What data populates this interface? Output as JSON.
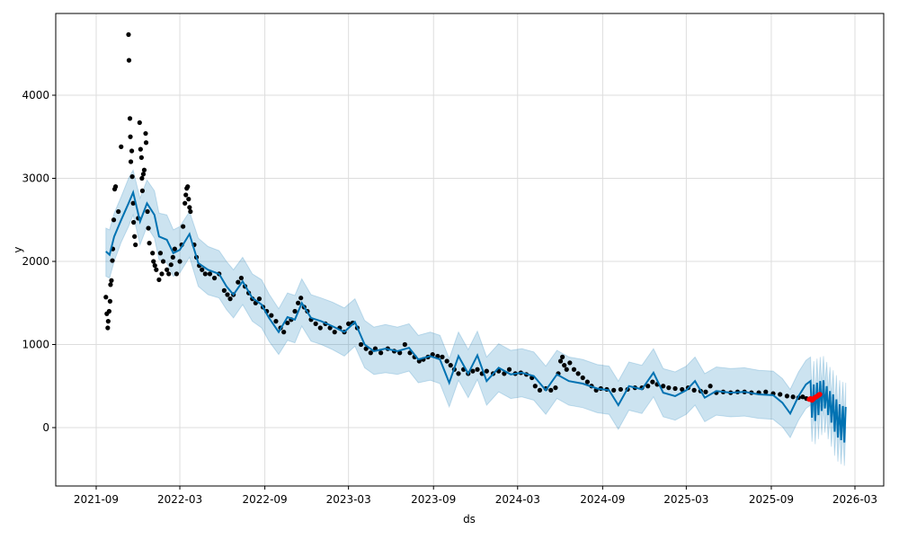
{
  "chart_data": {
    "type": "line",
    "title": "",
    "xlabel": "ds",
    "ylabel": "y",
    "xlim": [
      "2021-08-01",
      "2026-04-01"
    ],
    "ylim": [
      -700,
      4950
    ],
    "grid": true,
    "x_ticks": [
      "2021-09",
      "2022-03",
      "2022-09",
      "2023-03",
      "2023-09",
      "2024-03",
      "2024-09",
      "2025-03",
      "2025-09",
      "2026-03"
    ],
    "y_ticks": [
      0,
      1000,
      2000,
      3000,
      4000
    ],
    "colors": {
      "forecast": "#0072B2",
      "interval": "#0072B2",
      "observed": "#000000",
      "test": "#ff0000",
      "grid": "#dddddd"
    },
    "forecast": [
      [
        "2021-09-22",
        2120,
        1820,
        2400
      ],
      [
        "2021-09-30",
        2080,
        1800,
        2380
      ],
      [
        "2021-10-10",
        2300,
        2000,
        2580
      ],
      [
        "2021-10-25",
        2500,
        2230,
        2780
      ],
      [
        "2021-11-10",
        2700,
        2420,
        3000
      ],
      [
        "2021-11-20",
        2830,
        2560,
        3100
      ],
      [
        "2021-12-05",
        2480,
        2200,
        2760
      ],
      [
        "2021-12-20",
        2700,
        2420,
        2980
      ],
      [
        "2022-01-05",
        2560,
        2280,
        2850
      ],
      [
        "2022-01-15",
        2300,
        2020,
        2580
      ],
      [
        "2022-02-01",
        2260,
        1980,
        2560
      ],
      [
        "2022-02-15",
        2100,
        1820,
        2380
      ],
      [
        "2022-03-01",
        2140,
        1860,
        2420
      ],
      [
        "2022-03-22",
        2330,
        2050,
        2600
      ],
      [
        "2022-04-10",
        1980,
        1700,
        2280
      ],
      [
        "2022-05-01",
        1900,
        1600,
        2180
      ],
      [
        "2022-05-25",
        1850,
        1560,
        2130
      ],
      [
        "2022-06-10",
        1700,
        1420,
        2000
      ],
      [
        "2022-06-25",
        1600,
        1320,
        1900
      ],
      [
        "2022-07-15",
        1760,
        1480,
        2050
      ],
      [
        "2022-08-05",
        1560,
        1280,
        1850
      ],
      [
        "2022-08-25",
        1480,
        1200,
        1780
      ],
      [
        "2022-09-10",
        1320,
        1040,
        1610
      ],
      [
        "2022-10-01",
        1150,
        880,
        1430
      ],
      [
        "2022-10-20",
        1330,
        1050,
        1620
      ],
      [
        "2022-11-05",
        1300,
        1020,
        1590
      ],
      [
        "2022-11-20",
        1500,
        1220,
        1790
      ],
      [
        "2022-12-10",
        1320,
        1040,
        1600
      ],
      [
        "2023-01-01",
        1280,
        1000,
        1560
      ],
      [
        "2023-01-25",
        1220,
        940,
        1510
      ],
      [
        "2023-02-20",
        1150,
        860,
        1440
      ],
      [
        "2023-03-15",
        1270,
        980,
        1550
      ],
      [
        "2023-04-05",
        1000,
        720,
        1290
      ],
      [
        "2023-04-25",
        920,
        640,
        1210
      ],
      [
        "2023-05-20",
        950,
        660,
        1240
      ],
      [
        "2023-06-15",
        920,
        640,
        1210
      ],
      [
        "2023-07-10",
        960,
        680,
        1250
      ],
      [
        "2023-07-30",
        820,
        540,
        1110
      ],
      [
        "2023-08-25",
        860,
        570,
        1150
      ],
      [
        "2023-09-15",
        820,
        530,
        1110
      ],
      [
        "2023-10-05",
        540,
        250,
        830
      ],
      [
        "2023-10-25",
        860,
        570,
        1150
      ],
      [
        "2023-11-15",
        650,
        360,
        940
      ],
      [
        "2023-12-05",
        870,
        580,
        1160
      ],
      [
        "2023-12-25",
        560,
        270,
        850
      ],
      [
        "2024-01-20",
        720,
        430,
        1010
      ],
      [
        "2024-02-15",
        640,
        350,
        930
      ],
      [
        "2024-03-10",
        660,
        370,
        950
      ],
      [
        "2024-04-05",
        620,
        330,
        910
      ],
      [
        "2024-05-01",
        450,
        160,
        740
      ],
      [
        "2024-05-25",
        640,
        350,
        930
      ],
      [
        "2024-06-20",
        560,
        270,
        850
      ],
      [
        "2024-07-20",
        530,
        240,
        820
      ],
      [
        "2024-08-20",
        470,
        180,
        760
      ],
      [
        "2024-09-15",
        450,
        160,
        740
      ],
      [
        "2024-10-05",
        270,
        -20,
        560
      ],
      [
        "2024-10-28",
        500,
        210,
        790
      ],
      [
        "2024-11-25",
        460,
        170,
        750
      ],
      [
        "2024-12-20",
        660,
        370,
        950
      ],
      [
        "2025-01-10",
        420,
        130,
        710
      ],
      [
        "2025-02-05",
        380,
        90,
        670
      ],
      [
        "2025-03-01",
        450,
        160,
        740
      ],
      [
        "2025-03-20",
        560,
        270,
        850
      ],
      [
        "2025-04-10",
        360,
        70,
        650
      ],
      [
        "2025-05-05",
        440,
        150,
        730
      ],
      [
        "2025-06-05",
        420,
        130,
        710
      ],
      [
        "2025-07-05",
        430,
        140,
        720
      ],
      [
        "2025-08-05",
        400,
        110,
        690
      ],
      [
        "2025-09-05",
        390,
        100,
        680
      ],
      [
        "2025-09-25",
        300,
        10,
        590
      ],
      [
        "2025-10-12",
        170,
        -120,
        460
      ],
      [
        "2025-10-30",
        380,
        90,
        670
      ],
      [
        "2025-11-15",
        520,
        230,
        810
      ],
      [
        "2025-11-25",
        560,
        270,
        850
      ],
      [
        "2025-11-28",
        120,
        -170,
        410
      ],
      [
        "2025-12-02",
        520,
        230,
        800
      ],
      [
        "2025-12-05",
        80,
        -200,
        370
      ],
      [
        "2025-12-09",
        540,
        250,
        830
      ],
      [
        "2025-12-12",
        150,
        -140,
        440
      ],
      [
        "2025-12-16",
        560,
        270,
        850
      ],
      [
        "2025-12-19",
        200,
        -90,
        490
      ],
      [
        "2025-12-23",
        570,
        280,
        860
      ],
      [
        "2025-12-26",
        230,
        -60,
        520
      ],
      [
        "2025-12-30",
        500,
        210,
        790
      ],
      [
        "2026-01-02",
        150,
        -140,
        440
      ],
      [
        "2026-01-06",
        440,
        150,
        730
      ],
      [
        "2026-01-09",
        60,
        -230,
        350
      ],
      [
        "2026-01-13",
        400,
        110,
        690
      ],
      [
        "2026-01-16",
        -50,
        -340,
        240
      ],
      [
        "2026-01-20",
        340,
        50,
        630
      ],
      [
        "2026-01-23",
        -120,
        -410,
        170
      ],
      [
        "2026-01-27",
        280,
        -10,
        570
      ],
      [
        "2026-01-30",
        -150,
        -440,
        140
      ],
      [
        "2026-02-03",
        260,
        -30,
        550
      ],
      [
        "2026-02-06",
        -180,
        -460,
        100
      ],
      [
        "2026-02-09",
        250,
        -40,
        540
      ]
    ],
    "observed": [
      [
        "2021-09-22",
        1570
      ],
      [
        "2021-09-24",
        1370
      ],
      [
        "2021-09-26",
        1200
      ],
      [
        "2021-09-27",
        1280
      ],
      [
        "2021-09-29",
        1400
      ],
      [
        "2021-10-01",
        1520
      ],
      [
        "2021-10-02",
        1720
      ],
      [
        "2021-10-04",
        1770
      ],
      [
        "2021-10-06",
        2010
      ],
      [
        "2021-10-07",
        2150
      ],
      [
        "2021-10-09",
        2500
      ],
      [
        "2021-10-11",
        2870
      ],
      [
        "2021-10-13",
        2900
      ],
      [
        "2021-10-19",
        2600
      ],
      [
        "2021-10-25",
        3380
      ],
      [
        "2021-11-10",
        4730
      ],
      [
        "2021-11-11",
        4420
      ],
      [
        "2021-11-13",
        3720
      ],
      [
        "2021-11-14",
        3500
      ],
      [
        "2021-11-15",
        3200
      ],
      [
        "2021-11-17",
        3330
      ],
      [
        "2021-11-18",
        3020
      ],
      [
        "2021-11-20",
        2700
      ],
      [
        "2021-11-21",
        2470
      ],
      [
        "2021-11-23",
        2300
      ],
      [
        "2021-11-25",
        2200
      ],
      [
        "2021-12-01",
        2520
      ],
      [
        "2021-12-04",
        3670
      ],
      [
        "2021-12-06",
        3350
      ],
      [
        "2021-12-08",
        3250
      ],
      [
        "2021-12-09",
        3000
      ],
      [
        "2021-12-10",
        2850
      ],
      [
        "2021-12-12",
        3050
      ],
      [
        "2021-12-14",
        3100
      ],
      [
        "2021-12-17",
        3540
      ],
      [
        "2021-12-18",
        3430
      ],
      [
        "2021-12-21",
        2600
      ],
      [
        "2021-12-23",
        2400
      ],
      [
        "2021-12-25",
        2220
      ],
      [
        "2022-01-01",
        2100
      ],
      [
        "2022-01-03",
        2000
      ],
      [
        "2022-01-06",
        1950
      ],
      [
        "2022-01-09",
        1900
      ],
      [
        "2022-01-15",
        1780
      ],
      [
        "2022-01-18",
        2100
      ],
      [
        "2022-01-21",
        1850
      ],
      [
        "2022-01-24",
        2000
      ],
      [
        "2022-02-01",
        1900
      ],
      [
        "2022-02-05",
        1850
      ],
      [
        "2022-02-10",
        1960
      ],
      [
        "2022-02-14",
        2050
      ],
      [
        "2022-02-18",
        2150
      ],
      [
        "2022-02-22",
        1850
      ],
      [
        "2022-03-01",
        2000
      ],
      [
        "2022-03-05",
        2200
      ],
      [
        "2022-03-08",
        2420
      ],
      [
        "2022-03-12",
        2700
      ],
      [
        "2022-03-14",
        2800
      ],
      [
        "2022-03-16",
        2880
      ],
      [
        "2022-03-18",
        2900
      ],
      [
        "2022-03-20",
        2750
      ],
      [
        "2022-03-22",
        2650
      ],
      [
        "2022-03-24",
        2600
      ],
      [
        "2022-04-01",
        2200
      ],
      [
        "2022-04-06",
        2050
      ],
      [
        "2022-04-12",
        1950
      ],
      [
        "2022-04-18",
        1900
      ],
      [
        "2022-04-25",
        1850
      ],
      [
        "2022-05-05",
        1850
      ],
      [
        "2022-05-15",
        1800
      ],
      [
        "2022-05-25",
        1850
      ],
      [
        "2022-06-05",
        1650
      ],
      [
        "2022-06-12",
        1600
      ],
      [
        "2022-06-18",
        1550
      ],
      [
        "2022-06-25",
        1600
      ],
      [
        "2022-07-05",
        1750
      ],
      [
        "2022-07-12",
        1800
      ],
      [
        "2022-07-20",
        1700
      ],
      [
        "2022-07-28",
        1620
      ],
      [
        "2022-08-05",
        1550
      ],
      [
        "2022-08-12",
        1500
      ],
      [
        "2022-08-20",
        1550
      ],
      [
        "2022-08-28",
        1450
      ],
      [
        "2022-09-05",
        1400
      ],
      [
        "2022-09-15",
        1350
      ],
      [
        "2022-09-25",
        1280
      ],
      [
        "2022-10-05",
        1200
      ],
      [
        "2022-10-12",
        1150
      ],
      [
        "2022-10-20",
        1260
      ],
      [
        "2022-10-28",
        1300
      ],
      [
        "2022-11-05",
        1400
      ],
      [
        "2022-11-12",
        1500
      ],
      [
        "2022-11-18",
        1560
      ],
      [
        "2022-11-25",
        1450
      ],
      [
        "2022-12-02",
        1400
      ],
      [
        "2022-12-10",
        1300
      ],
      [
        "2022-12-20",
        1250
      ],
      [
        "2022-12-30",
        1200
      ],
      [
        "2023-01-10",
        1250
      ],
      [
        "2023-01-20",
        1200
      ],
      [
        "2023-01-30",
        1150
      ],
      [
        "2023-02-10",
        1200
      ],
      [
        "2023-02-20",
        1150
      ],
      [
        "2023-03-01",
        1250
      ],
      [
        "2023-03-10",
        1260
      ],
      [
        "2023-03-20",
        1200
      ],
      [
        "2023-03-28",
        1000
      ],
      [
        "2023-04-08",
        950
      ],
      [
        "2023-04-18",
        900
      ],
      [
        "2023-04-28",
        950
      ],
      [
        "2023-05-10",
        900
      ],
      [
        "2023-05-25",
        950
      ],
      [
        "2023-06-08",
        920
      ],
      [
        "2023-06-20",
        900
      ],
      [
        "2023-07-01",
        1000
      ],
      [
        "2023-07-12",
        900
      ],
      [
        "2023-07-22",
        850
      ],
      [
        "2023-08-01",
        800
      ],
      [
        "2023-08-10",
        820
      ],
      [
        "2023-08-20",
        850
      ],
      [
        "2023-08-30",
        880
      ],
      [
        "2023-09-10",
        860
      ],
      [
        "2023-09-20",
        850
      ],
      [
        "2023-09-30",
        800
      ],
      [
        "2023-10-08",
        750
      ],
      [
        "2023-10-16",
        700
      ],
      [
        "2023-10-25",
        650
      ],
      [
        "2023-11-05",
        700
      ],
      [
        "2023-11-15",
        650
      ],
      [
        "2023-11-25",
        680
      ],
      [
        "2023-12-05",
        700
      ],
      [
        "2023-12-15",
        650
      ],
      [
        "2023-12-25",
        680
      ],
      [
        "2024-01-08",
        650
      ],
      [
        "2024-01-20",
        680
      ],
      [
        "2024-02-01",
        650
      ],
      [
        "2024-02-12",
        700
      ],
      [
        "2024-02-25",
        650
      ],
      [
        "2024-03-08",
        660
      ],
      [
        "2024-03-20",
        640
      ],
      [
        "2024-04-01",
        600
      ],
      [
        "2024-04-08",
        500
      ],
      [
        "2024-04-18",
        450
      ],
      [
        "2024-05-01",
        470
      ],
      [
        "2024-05-12",
        450
      ],
      [
        "2024-05-22",
        480
      ],
      [
        "2024-05-28",
        650
      ],
      [
        "2024-06-02",
        800
      ],
      [
        "2024-06-06",
        850
      ],
      [
        "2024-06-10",
        750
      ],
      [
        "2024-06-15",
        700
      ],
      [
        "2024-06-22",
        780
      ],
      [
        "2024-07-01",
        700
      ],
      [
        "2024-07-10",
        650
      ],
      [
        "2024-07-20",
        600
      ],
      [
        "2024-07-30",
        550
      ],
      [
        "2024-08-08",
        500
      ],
      [
        "2024-08-18",
        450
      ],
      [
        "2024-08-28",
        470
      ],
      [
        "2024-09-10",
        460
      ],
      [
        "2024-09-25",
        450
      ],
      [
        "2024-10-10",
        460
      ],
      [
        "2024-10-25",
        460
      ],
      [
        "2024-11-10",
        480
      ],
      [
        "2024-11-25",
        480
      ],
      [
        "2024-12-08",
        500
      ],
      [
        "2024-12-18",
        550
      ],
      [
        "2024-12-28",
        520
      ],
      [
        "2025-01-10",
        500
      ],
      [
        "2025-01-22",
        480
      ],
      [
        "2025-02-05",
        470
      ],
      [
        "2025-02-20",
        460
      ],
      [
        "2025-03-05",
        480
      ],
      [
        "2025-03-18",
        450
      ],
      [
        "2025-04-01",
        440
      ],
      [
        "2025-04-12",
        430
      ],
      [
        "2025-04-22",
        500
      ],
      [
        "2025-05-05",
        420
      ],
      [
        "2025-05-20",
        430
      ],
      [
        "2025-06-05",
        420
      ],
      [
        "2025-06-20",
        430
      ],
      [
        "2025-07-05",
        430
      ],
      [
        "2025-07-20",
        420
      ],
      [
        "2025-08-05",
        420
      ],
      [
        "2025-08-20",
        430
      ],
      [
        "2025-09-05",
        410
      ],
      [
        "2025-09-20",
        400
      ],
      [
        "2025-10-05",
        380
      ],
      [
        "2025-10-18",
        370
      ],
      [
        "2025-10-30",
        360
      ],
      [
        "2025-11-08",
        370
      ],
      [
        "2025-11-16",
        350
      ]
    ],
    "test": [
      [
        "2025-11-22",
        340
      ],
      [
        "2025-11-25",
        350
      ],
      [
        "2025-11-28",
        330
      ],
      [
        "2025-12-01",
        345
      ],
      [
        "2025-12-04",
        360
      ],
      [
        "2025-12-07",
        370
      ],
      [
        "2025-12-10",
        380
      ],
      [
        "2025-12-13",
        395
      ],
      [
        "2025-12-15",
        400
      ]
    ]
  }
}
